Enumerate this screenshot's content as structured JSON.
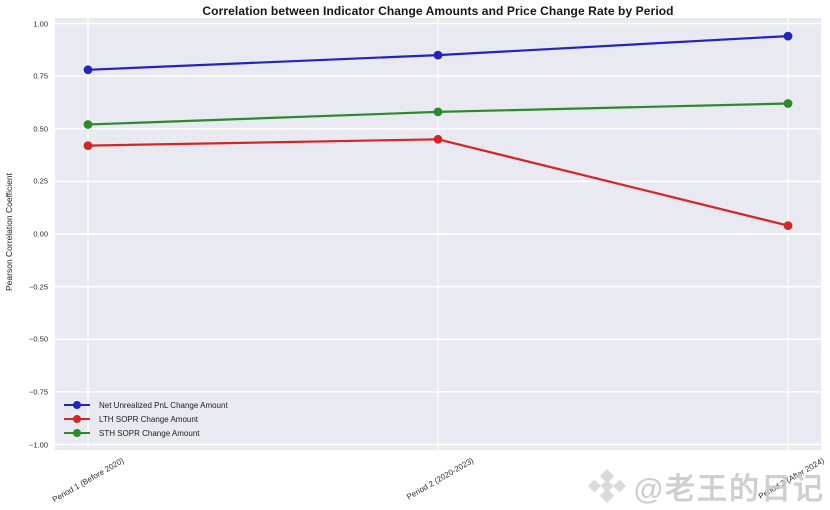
{
  "chart_data": {
    "type": "line",
    "title": "Correlation between Indicator Change Amounts and Price Change Rate by Period",
    "xlabel": "",
    "ylabel": "Pearson Correlation Coefficient",
    "categories": [
      "Period 1 (Before 2020)",
      "Period 2 (2020-2023)",
      "Period 3 (After 2024)"
    ],
    "series": [
      {
        "name": "Net Unrealized PnL Change Amount",
        "color": "#2323c0",
        "values": [
          0.78,
          0.85,
          0.94
        ]
      },
      {
        "name": "LTH SOPR Change Amount",
        "color": "#d42626",
        "values": [
          0.42,
          0.45,
          0.04
        ]
      },
      {
        "name": "STH SOPR Change Amount",
        "color": "#2b8a2b",
        "values": [
          0.52,
          0.58,
          0.62
        ]
      }
    ],
    "ylim": [
      -1.0,
      1.0
    ],
    "yticks": [
      1.0,
      0.75,
      0.5,
      0.25,
      0.0,
      -0.25,
      -0.5,
      -0.75,
      -1.0
    ],
    "ytick_labels": [
      "1.00",
      "0.75",
      "0.50",
      "0.25",
      "0.00",
      "−0.25",
      "−0.50",
      "−0.75",
      "−1.00"
    ],
    "grid": true,
    "legend_position": "lower left",
    "plot_bg_color": "#e9e9f1",
    "grid_color": "#ffffff",
    "marker": "circle",
    "marker_radius": 4.4,
    "line_width": 2.2
  },
  "watermark": {
    "text": "@老王的日记",
    "logo": "binance-diamond-icon",
    "color": "#d6d6d8"
  }
}
